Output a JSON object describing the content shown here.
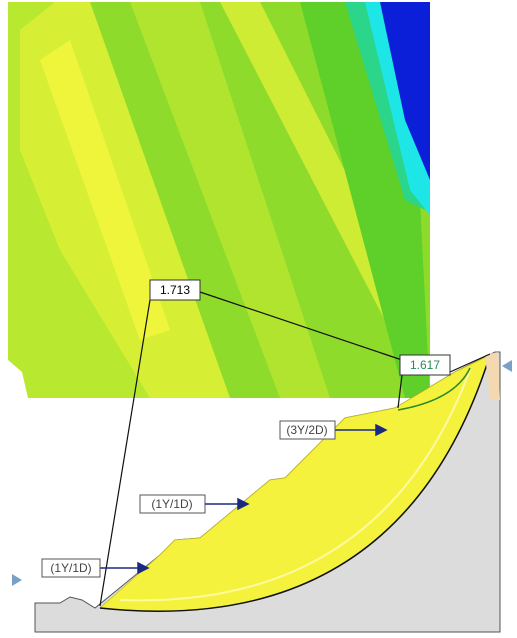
{
  "labels": {
    "fos_global": "1.713",
    "fos_local": "1.617",
    "bench_upper": "(3Y/2D)",
    "bench_middle": "(1Y/1D)",
    "bench_lower": "(1Y/1D)"
  }
}
